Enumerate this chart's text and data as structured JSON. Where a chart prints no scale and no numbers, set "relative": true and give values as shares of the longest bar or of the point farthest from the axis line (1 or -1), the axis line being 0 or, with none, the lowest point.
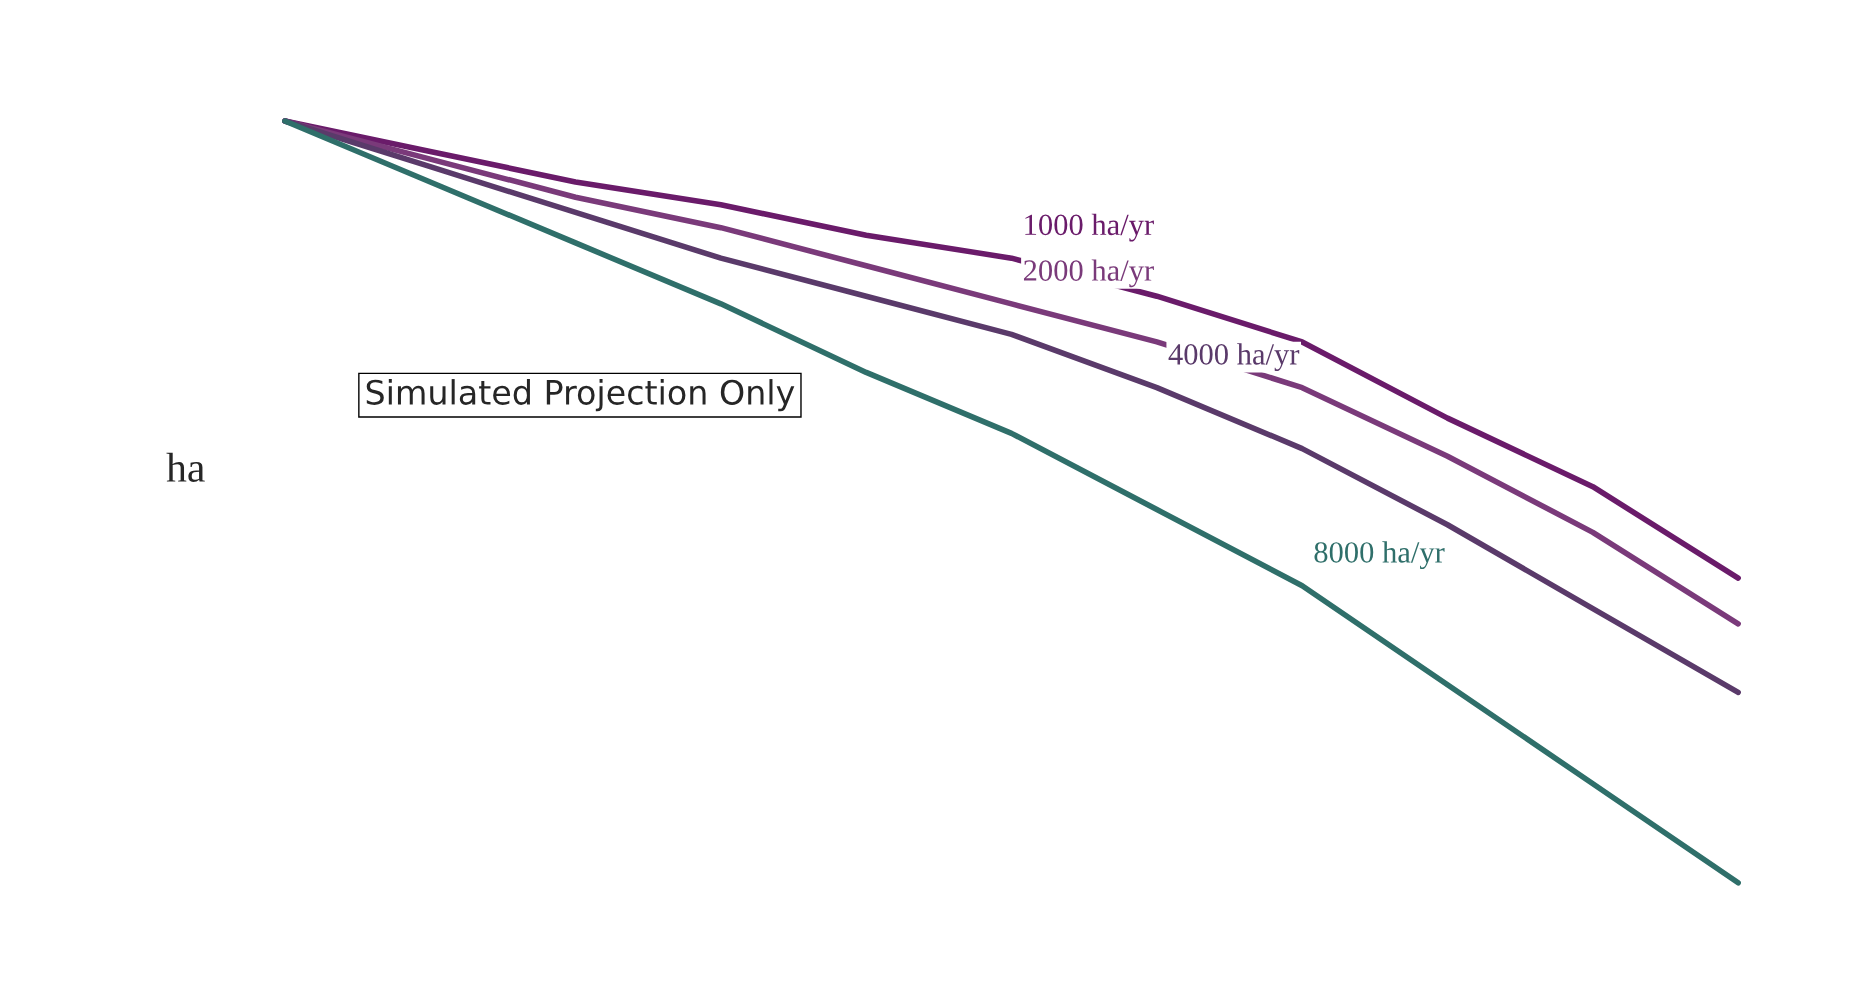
{
  "chart_data": {
    "type": "line",
    "relative": true,
    "ylabel": "ha",
    "categories": [
      null,
      null,
      null,
      null,
      null,
      null,
      null,
      null,
      null,
      null,
      null
    ],
    "series": [
      {
        "name": "1000 ha/yr",
        "color": "#6a1b6a",
        "values": [
          1.0,
          0.96,
          0.92,
          0.89,
          0.85,
          0.82,
          0.77,
          0.71,
          0.61,
          0.52,
          0.4
        ]
      },
      {
        "name": "2000 ha/yr",
        "color": "#7a3a7a",
        "values": [
          1.0,
          0.95,
          0.9,
          0.86,
          0.81,
          0.76,
          0.71,
          0.65,
          0.56,
          0.46,
          0.34
        ]
      },
      {
        "name": "4000 ha/yr",
        "color": "#5a3a6a",
        "values": [
          1.0,
          0.94,
          0.88,
          0.82,
          0.77,
          0.72,
          0.65,
          0.57,
          0.47,
          0.36,
          0.25
        ]
      },
      {
        "name": "8000 ha/yr",
        "color": "#2f6f6a",
        "values": [
          1.0,
          0.92,
          0.84,
          0.76,
          0.67,
          0.59,
          0.49,
          0.39,
          0.26,
          0.13,
          0.0
        ]
      }
    ],
    "annotations": [
      "Simulated Projection Only"
    ],
    "legend": false
  }
}
